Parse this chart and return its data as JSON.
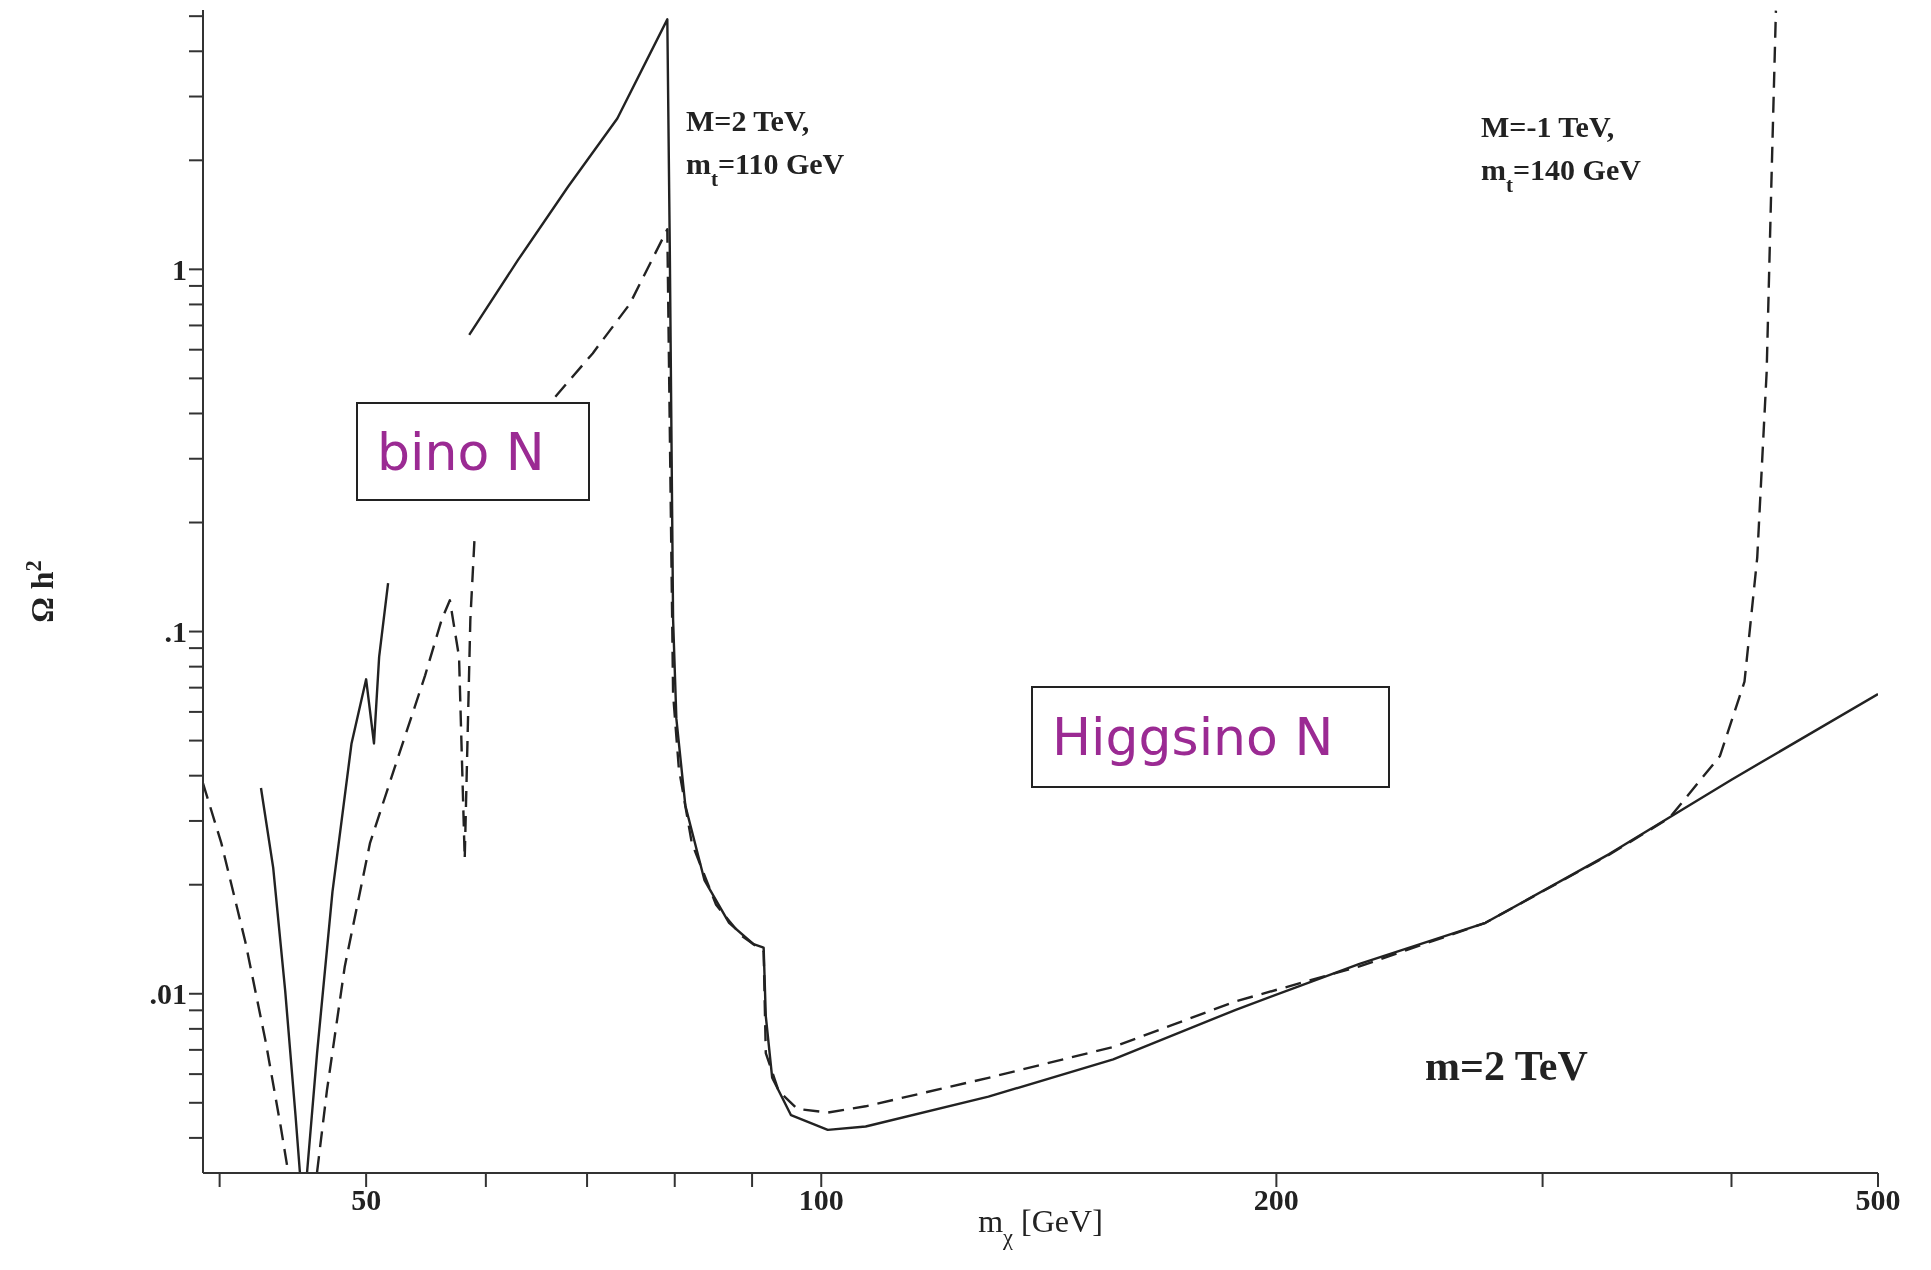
{
  "chart_data": {
    "type": "line",
    "xlabel": "m$_{χ}$ [GeV]",
    "ylabel": "Ω h$^{2}$",
    "annotations": [
      "M=2 TeV,",
      "m$_{t}$=110 GeV",
      "M=-1 TeV,",
      "m$_{t}$=140 GeV",
      "m=2 TeV",
      "bino N",
      "Higgsino N"
    ],
    "log": "xy",
    "marker": "none",
    "xlim": [
      39,
      500
    ],
    "ylim": [
      0.0032,
      5.2
    ],
    "xticks": [
      {
        "value": 40,
        "label": null
      },
      {
        "value": 50,
        "label": "50"
      },
      {
        "value": 60,
        "label": null
      },
      {
        "value": 70,
        "label": null
      },
      {
        "value": 80,
        "label": null
      },
      {
        "value": 90,
        "label": null
      },
      {
        "value": 100,
        "label": "100"
      },
      {
        "value": 200,
        "label": "200"
      },
      {
        "value": 300,
        "label": null
      },
      {
        "value": 400,
        "label": null
      },
      {
        "value": 500,
        "label": "500"
      }
    ],
    "yticks": [
      {
        "value": 0.004,
        "label": null
      },
      {
        "value": 0.005,
        "label": null
      },
      {
        "value": 0.006,
        "label": null
      },
      {
        "value": 0.007,
        "label": null
      },
      {
        "value": 0.008,
        "label": null
      },
      {
        "value": 0.009,
        "label": null
      },
      {
        "value": 0.01,
        "label": ".01"
      },
      {
        "value": 0.02,
        "label": null
      },
      {
        "value": 0.03,
        "label": null
      },
      {
        "value": 0.04,
        "label": null
      },
      {
        "value": 0.05,
        "label": null
      },
      {
        "value": 0.06,
        "label": null
      },
      {
        "value": 0.07,
        "label": null
      },
      {
        "value": 0.08,
        "label": null
      },
      {
        "value": 0.09,
        "label": null
      },
      {
        "value": 0.1,
        "label": ".1"
      },
      {
        "value": 0.2,
        "label": null
      },
      {
        "value": 0.3,
        "label": null
      },
      {
        "value": 0.4,
        "label": null
      },
      {
        "value": 0.5,
        "label": null
      },
      {
        "value": 0.6,
        "label": null
      },
      {
        "value": 0.7,
        "label": null
      },
      {
        "value": 0.8,
        "label": null
      },
      {
        "value": 0.9,
        "label": null
      },
      {
        "value": 1,
        "label": "1"
      },
      {
        "value": 2,
        "label": null
      },
      {
        "value": 3,
        "label": null
      },
      {
        "value": 4,
        "label": null
      },
      {
        "value": 5,
        "label": null
      }
    ],
    "series": [
      {
        "color": "#222222",
        "line_style": "solid",
        "x": [
          42.6,
          43.4,
          44.2,
          44.9,
          45.2,
          45.5,
          45.7,
          46.4,
          47.5,
          48.9,
          50,
          50.6,
          51.0,
          51.7,
          53.2,
          55.3,
          58.5,
          63.0,
          68.0,
          73.3,
          79.1,
          79.4,
          79.8,
          80.2,
          81.3,
          83.7,
          86.9,
          90.2,
          91.6,
          91.9,
          92.8,
          95.5,
          101,
          107,
          129,
          156,
          188,
          227,
          275,
          332,
          400,
          500
        ],
        "values": [
          0.037,
          0.0223,
          0.0102,
          0.00462,
          0.00322,
          null,
          0.00322,
          0.00686,
          0.0191,
          0.0491,
          0.0738,
          0.0491,
          0.0851,
          0.136,
          null,
          null,
          0.659,
          1.06,
          1.69,
          2.61,
          4.9,
          1.14,
          0.108,
          0.0574,
          0.0331,
          0.0206,
          0.0157,
          0.0137,
          0.0134,
          0.00868,
          0.00586,
          0.00462,
          0.00421,
          0.0043,
          0.0052,
          0.00659,
          0.00903,
          0.0121,
          0.0157,
          0.0243,
          0.039,
          0.0672
        ]
      },
      {
        "color": "#222222",
        "line_style": "dashed",
        "x": [
          39.0,
          40.1,
          41.6,
          42.9,
          43.9,
          44.4,
          45.0,
          46.4,
          47.1,
          48.4,
          50.3,
          52.2,
          54.7,
          56.1,
          56.8,
          57.6,
          58.1,
          58.6,
          59.0,
          60.7,
          63.0,
          66.7,
          70.6,
          74.7,
          79.1,
          79.8,
          80.5,
          82.1,
          85.2,
          88.5,
          91.6,
          91.9,
          93.7,
          96.4,
          101,
          107,
          129,
          156,
          188,
          227,
          275,
          332,
          364,
          393,
          408,
          416,
          422,
          425,
          428
        ],
        "values": [
          0.0381,
          0.0261,
          0.0139,
          0.0074,
          0.0043,
          0.00322,
          null,
          0.00322,
          0.0054,
          0.0119,
          0.0261,
          0.0419,
          0.0757,
          0.108,
          0.122,
          0.0851,
          0.0236,
          0.108,
          0.187,
          null,
          null,
          0.445,
          0.586,
          0.802,
          1.29,
          0.0672,
          0.0419,
          0.0261,
          0.0176,
          0.0145,
          0.0131,
          0.00686,
          0.0054,
          0.00481,
          0.0047,
          0.00489,
          0.00586,
          0.00713,
          0.00953,
          0.0119,
          0.0157,
          0.0242,
          0.0306,
          0.0453,
          0.0727,
          0.16,
          0.52,
          1.69,
          5.18
        ]
      }
    ]
  }
}
